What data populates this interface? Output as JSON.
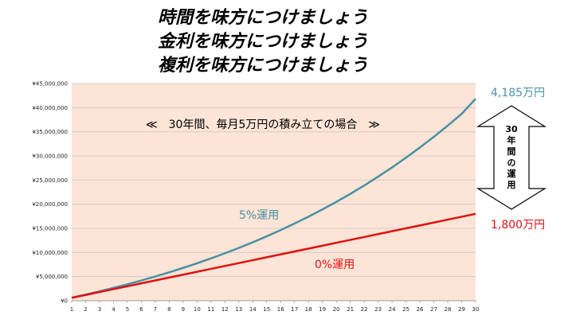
{
  "title": {
    "line1": "時間を味方につけましょう",
    "line2": "金利を味方につけましょう",
    "line3": "複利を味方につけましょう"
  },
  "annotation": "≪　30年間、毎月5万円の積み立ての場合　≫",
  "arrow_label": {
    "chars": [
      "30",
      "年",
      "間",
      "の",
      "運",
      "用"
    ]
  },
  "end_labels": {
    "top": "4,185万円",
    "bottom": "1,800万円"
  },
  "colors": {
    "plot_bg": "#fce4d6",
    "series_5pct": "#4a90a4",
    "series_0pct": "#e01010",
    "grid": "#c8c8c8"
  },
  "chart_data": {
    "type": "line",
    "x": [
      1,
      2,
      3,
      4,
      5,
      6,
      7,
      8,
      9,
      10,
      11,
      12,
      13,
      14,
      15,
      16,
      17,
      18,
      19,
      20,
      21,
      22,
      23,
      24,
      25,
      26,
      27,
      28,
      29,
      30
    ],
    "xlim": [
      1,
      30
    ],
    "ylim": [
      0,
      45000000
    ],
    "y_ticks": [
      {
        "value": 0,
        "label": "¥0"
      },
      {
        "value": 5000000,
        "label": "¥5,000,000"
      },
      {
        "value": 10000000,
        "label": "¥10,000,000"
      },
      {
        "value": 15000000,
        "label": "¥15,000,000"
      },
      {
        "value": 20000000,
        "label": "¥20,000,000"
      },
      {
        "value": 25000000,
        "label": "¥25,000,000"
      },
      {
        "value": 30000000,
        "label": "¥30,000,000"
      },
      {
        "value": 35000000,
        "label": "¥35,000,000"
      },
      {
        "value": 40000000,
        "label": "¥40,000,000"
      },
      {
        "value": 45000000,
        "label": "¥45,000,000"
      }
    ],
    "grid": true,
    "series": [
      {
        "name": "5%運用",
        "values": [
          615000,
          1262000,
          1941000,
          2654000,
          3400000,
          4190000,
          5020000,
          5890000,
          6800000,
          7760000,
          8770000,
          9830000,
          10940000,
          12110000,
          13340000,
          14630000,
          15990000,
          17420000,
          18910000,
          20480000,
          22130000,
          23870000,
          25700000,
          27620000,
          29630000,
          31740000,
          33950000,
          36280000,
          38720000,
          41850000
        ]
      },
      {
        "name": "0%運用",
        "values": [
          600000,
          1200000,
          1800000,
          2400000,
          3000000,
          3600000,
          4200000,
          4800000,
          5400000,
          6000000,
          6600000,
          7200000,
          7800000,
          8400000,
          9000000,
          9600000,
          10200000,
          10800000,
          11400000,
          12000000,
          12600000,
          13200000,
          13800000,
          14400000,
          15000000,
          15600000,
          16200000,
          16800000,
          17400000,
          18000000
        ]
      }
    ]
  }
}
